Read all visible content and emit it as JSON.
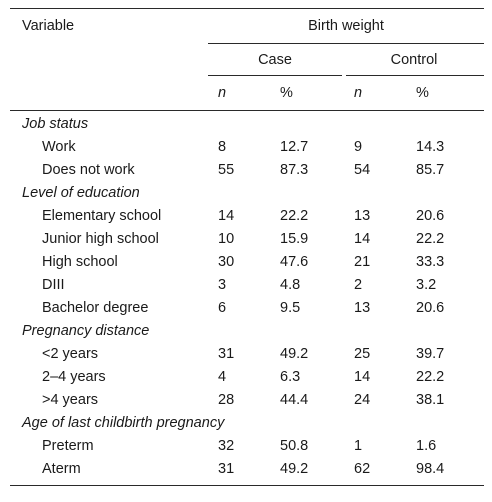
{
  "header": {
    "variable": "Variable",
    "birth_weight": "Birth weight",
    "case": "Case",
    "control": "Control",
    "n": "n",
    "pct": "%"
  },
  "sections": [
    {
      "title": "Job status",
      "rows": [
        {
          "label": "Work",
          "n1": "8",
          "p1": "12.7",
          "n2": "9",
          "p2": "14.3"
        },
        {
          "label": "Does not work",
          "n1": "55",
          "p1": "87.3",
          "n2": "54",
          "p2": "85.7"
        }
      ]
    },
    {
      "title": "Level of education",
      "rows": [
        {
          "label": "Elementary school",
          "n1": "14",
          "p1": "22.2",
          "n2": "13",
          "p2": "20.6"
        },
        {
          "label": "Junior high school",
          "n1": "10",
          "p1": "15.9",
          "n2": "14",
          "p2": "22.2"
        },
        {
          "label": "High school",
          "n1": "30",
          "p1": "47.6",
          "n2": "21",
          "p2": "33.3"
        },
        {
          "label": "DIII",
          "n1": "3",
          "p1": "4.8",
          "n2": "2",
          "p2": "3.2"
        },
        {
          "label": "Bachelor degree",
          "n1": "6",
          "p1": "9.5",
          "n2": "13",
          "p2": "20.6"
        }
      ]
    },
    {
      "title": "Pregnancy distance",
      "rows": [
        {
          "label": "<2 years",
          "n1": "31",
          "p1": "49.2",
          "n2": "25",
          "p2": "39.7"
        },
        {
          "label": "2–4 years",
          "n1": "4",
          "p1": "6.3",
          "n2": "14",
          "p2": "22.2"
        },
        {
          "label": ">4 years",
          "n1": "28",
          "p1": "44.4",
          "n2": "24",
          "p2": "38.1"
        }
      ]
    },
    {
      "title": "Age of last childbirth pregnancy",
      "rows": [
        {
          "label": "Preterm",
          "n1": "32",
          "p1": "50.8",
          "n2": "1",
          "p2": "1.6"
        },
        {
          "label": "Aterm",
          "n1": "31",
          "p1": "49.2",
          "n2": "62",
          "p2": "98.4"
        }
      ]
    }
  ]
}
